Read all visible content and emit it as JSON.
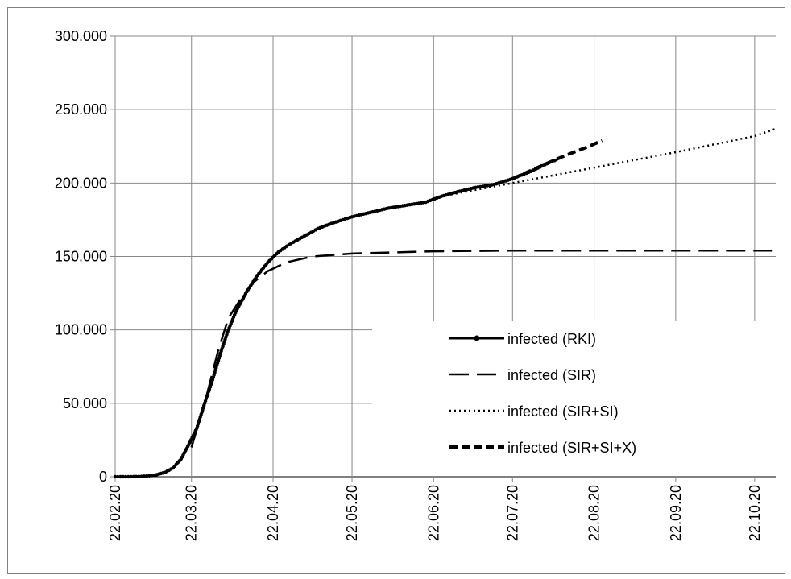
{
  "chart_data": {
    "type": "line",
    "title": "",
    "xlabel": "",
    "ylabel": "",
    "x_axis": {
      "type": "date",
      "ticks": [
        "22.02.20",
        "22.03.20",
        "22.04.20",
        "22.05.20",
        "22.06.20",
        "22.07.20",
        "22.08.20",
        "22.09.20",
        "22.10.20"
      ],
      "range": [
        "2020-02-22",
        "2020-10-30"
      ]
    },
    "y_axis": {
      "ticks": [
        "0",
        "50.000",
        "100.000",
        "150.000",
        "200.000",
        "250.000",
        "300.000"
      ],
      "ylim": [
        0,
        300000
      ]
    },
    "grid": true,
    "legend_position": "bottom-right",
    "series": [
      {
        "name": "infected (RKI)",
        "style": "solid-markers",
        "points": [
          [
            "2020-02-22",
            0
          ],
          [
            "2020-02-27",
            0
          ],
          [
            "2020-03-03",
            200
          ],
          [
            "2020-03-08",
            1000
          ],
          [
            "2020-03-12",
            3000
          ],
          [
            "2020-03-15",
            6000
          ],
          [
            "2020-03-18",
            12000
          ],
          [
            "2020-03-21",
            22000
          ],
          [
            "2020-03-24",
            33000
          ],
          [
            "2020-03-27",
            50000
          ],
          [
            "2020-03-30",
            66000
          ],
          [
            "2020-04-02",
            84000
          ],
          [
            "2020-04-05",
            100000
          ],
          [
            "2020-04-08",
            113000
          ],
          [
            "2020-04-12",
            126000
          ],
          [
            "2020-04-16",
            137000
          ],
          [
            "2020-04-20",
            146000
          ],
          [
            "2020-04-24",
            153000
          ],
          [
            "2020-04-28",
            158000
          ],
          [
            "2020-05-03",
            163000
          ],
          [
            "2020-05-09",
            169000
          ],
          [
            "2020-05-15",
            173000
          ],
          [
            "2020-05-22",
            177000
          ],
          [
            "2020-05-29",
            180000
          ],
          [
            "2020-06-05",
            183000
          ],
          [
            "2020-06-12",
            185000
          ],
          [
            "2020-06-19",
            187000
          ],
          [
            "2020-06-25",
            191000
          ],
          [
            "2020-07-01",
            194000
          ],
          [
            "2020-07-08",
            197000
          ],
          [
            "2020-07-15",
            199000
          ],
          [
            "2020-07-22",
            203000
          ],
          [
            "2020-07-29",
            208000
          ],
          [
            "2020-08-05",
            214000
          ],
          [
            "2020-08-08",
            216000
          ]
        ]
      },
      {
        "name": "infected (SIR)",
        "style": "long-dash",
        "points": [
          [
            "2020-03-22",
            20000
          ],
          [
            "2020-03-27",
            50000
          ],
          [
            "2020-04-01",
            85000
          ],
          [
            "2020-04-05",
            108000
          ],
          [
            "2020-04-10",
            122000
          ],
          [
            "2020-04-15",
            133000
          ],
          [
            "2020-04-20",
            140000
          ],
          [
            "2020-04-27",
            146000
          ],
          [
            "2020-05-07",
            150000
          ],
          [
            "2020-05-22",
            152000
          ],
          [
            "2020-06-22",
            153500
          ],
          [
            "2020-07-22",
            154000
          ],
          [
            "2020-10-30",
            154000
          ]
        ]
      },
      {
        "name": "infected (SIR+SI)",
        "style": "dotted",
        "points": [
          [
            "2020-06-25",
            191000
          ],
          [
            "2020-07-22",
            200000
          ],
          [
            "2020-08-22",
            210500
          ],
          [
            "2020-09-22",
            221000
          ],
          [
            "2020-10-22",
            232000
          ],
          [
            "2020-10-30",
            237000
          ]
        ]
      },
      {
        "name": "infected (SIR+SI+X)",
        "style": "short-dash",
        "points": [
          [
            "2020-07-22",
            203000
          ],
          [
            "2020-08-01",
            211000
          ],
          [
            "2020-08-10",
            218000
          ],
          [
            "2020-08-20",
            225000
          ],
          [
            "2020-08-25",
            229000
          ]
        ]
      }
    ]
  }
}
